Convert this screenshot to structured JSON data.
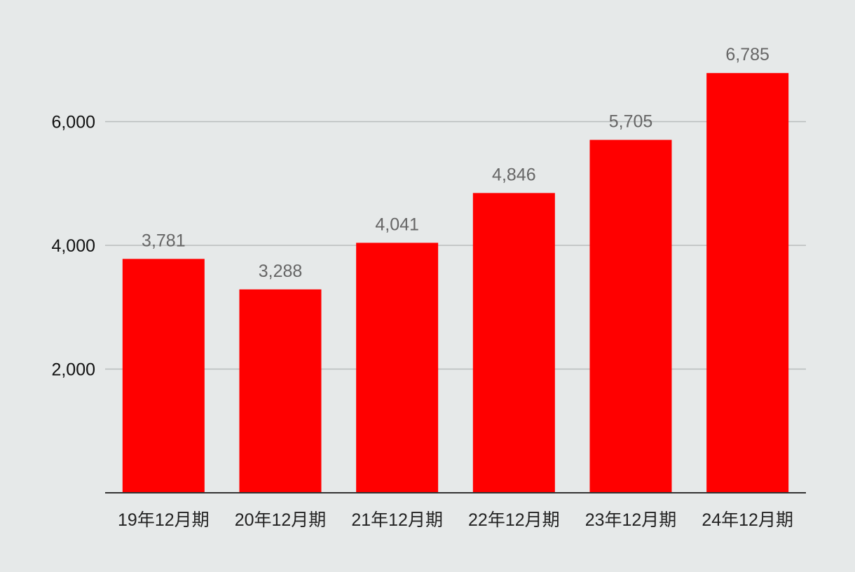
{
  "chart_data": {
    "type": "bar",
    "categories": [
      "19年12月期",
      "20年12月期",
      "21年12月期",
      "22年12月期",
      "23年12月期",
      "24年12月期"
    ],
    "values": [
      3781,
      3288,
      4041,
      4846,
      5705,
      6785
    ],
    "value_labels": [
      "3,781",
      "3,288",
      "4,041",
      "4,846",
      "5,705",
      "6,785"
    ],
    "yticks": [
      2000,
      4000,
      6000
    ],
    "ytick_labels": [
      "2,000",
      "4,000",
      "6,000"
    ],
    "ylim": [
      0,
      7000
    ],
    "grid": true,
    "legend": "none",
    "colors": {
      "bar": "#ff0000",
      "grid": "#b8bcbc",
      "axis": "#333333",
      "background": "#e6e9e9",
      "value_label": "#666666"
    }
  }
}
